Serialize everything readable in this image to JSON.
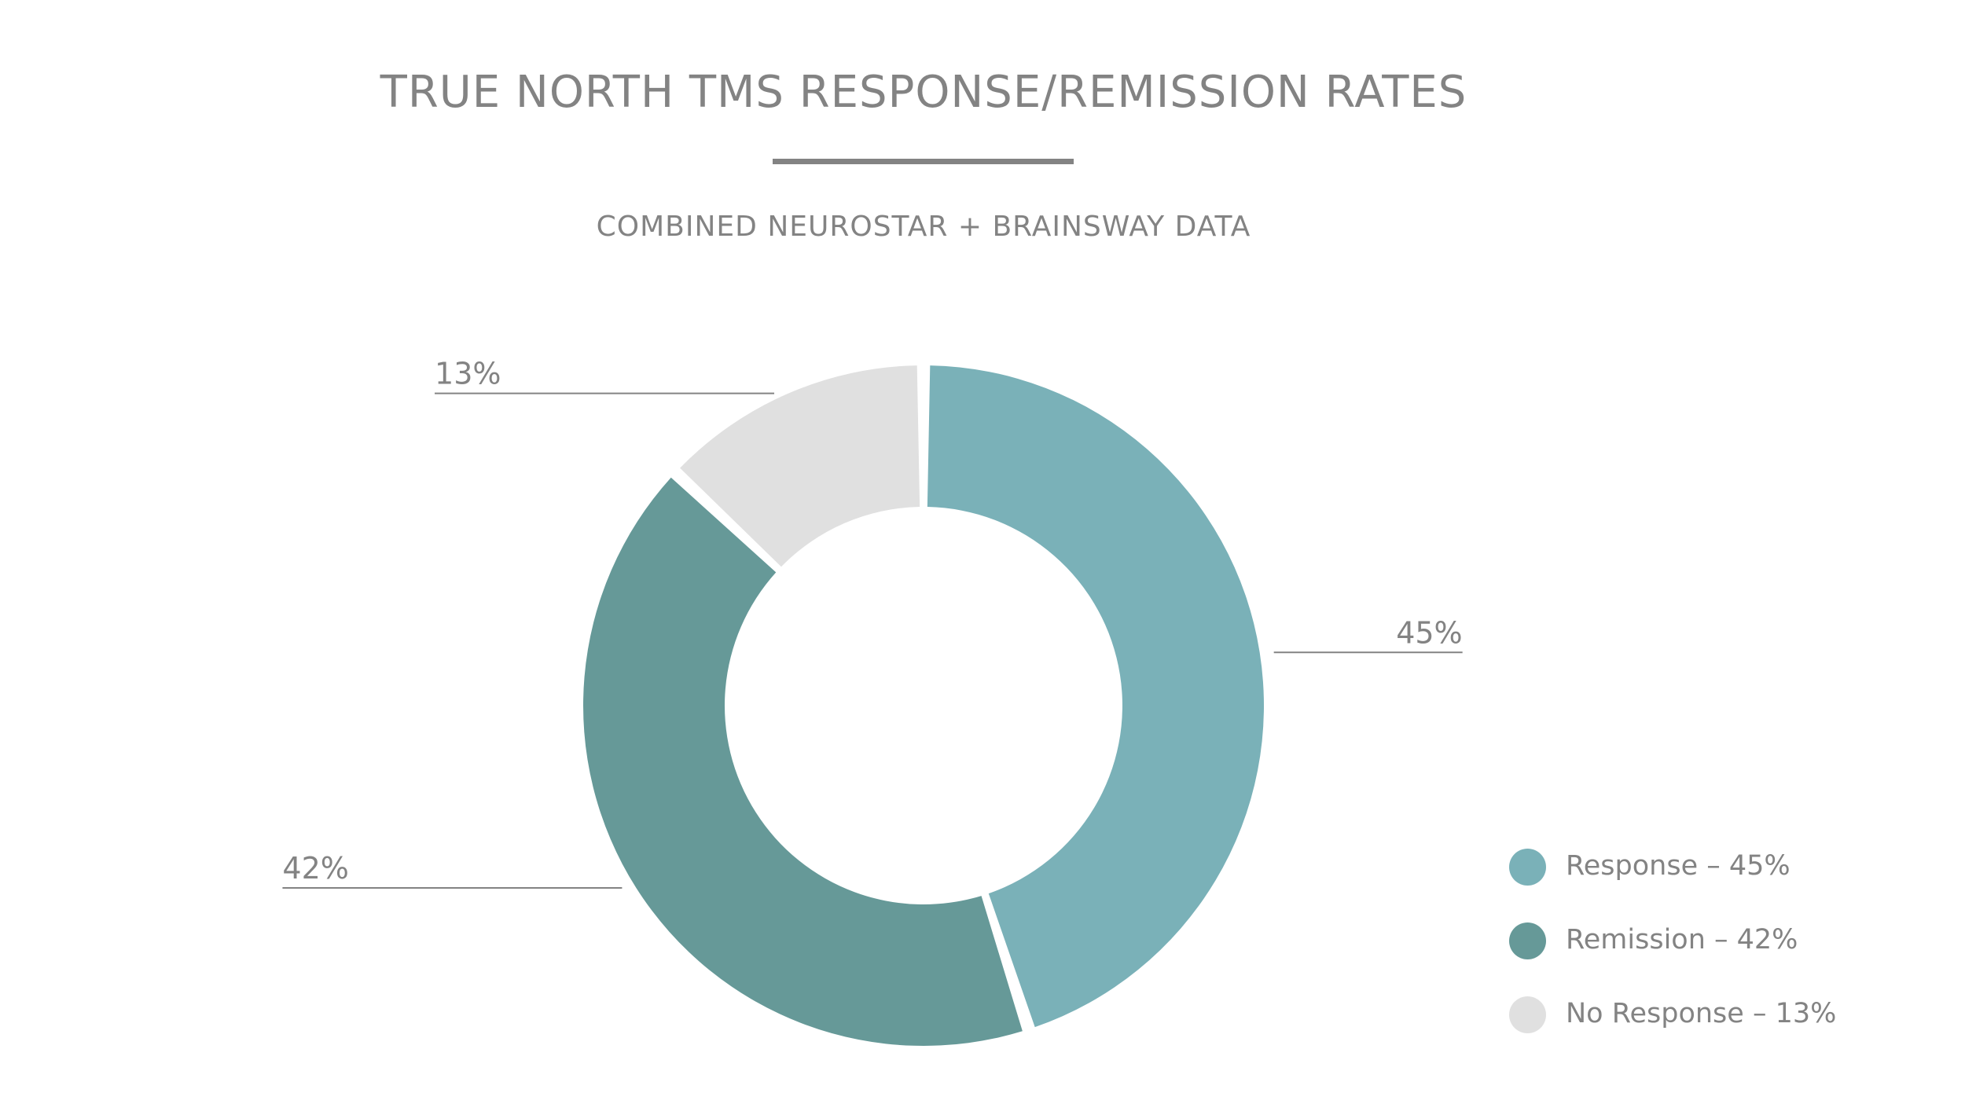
{
  "title": "TRUE NORTH TMS RESPONSE/REMISSION RATES",
  "subtitle": "COMBINED NEUROSTAR + BRAINSWAY DATA",
  "chart_data": {
    "type": "pie",
    "variant": "donut",
    "title": "TRUE NORTH TMS RESPONSE/REMISSION RATES",
    "subtitle": "COMBINED NEUROSTAR + BRAINSWAY DATA",
    "categories": [
      "Response",
      "Remission",
      "No Response"
    ],
    "values": [
      45,
      42,
      13
    ],
    "unit": "%",
    "colors": [
      "#7ab1b8",
      "#669998",
      "#e0e0e0"
    ],
    "data_labels": [
      "45%",
      "42%",
      "13%"
    ],
    "legend_position": "bottom-right",
    "legend": [
      {
        "label": "Response – 45%",
        "color": "#7ab1b8"
      },
      {
        "label": "Remission – 42%",
        "color": "#669998"
      },
      {
        "label": "No Response – 13%",
        "color": "#e0e0e0"
      }
    ]
  }
}
